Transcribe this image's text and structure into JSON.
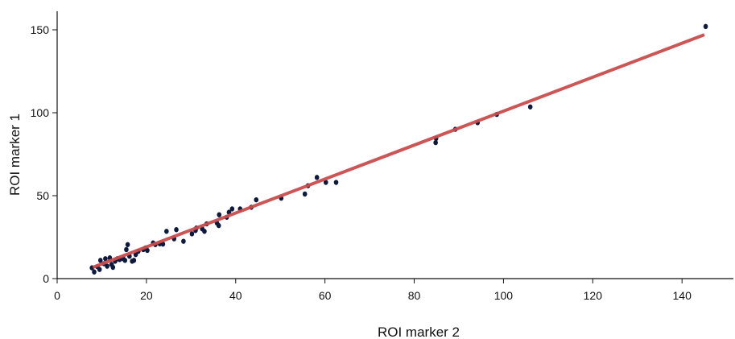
{
  "chart_data": {
    "type": "scatter",
    "xlabel": "ROI marker 2",
    "ylabel": "ROI marker 1",
    "xlim": [
      0,
      150
    ],
    "ylim": [
      0,
      155
    ],
    "xticks": [
      0,
      20,
      40,
      60,
      80,
      100,
      120,
      140
    ],
    "yticks": [
      0,
      50,
      100,
      150
    ],
    "grid": false,
    "colors": {
      "points": "#0d1a3d",
      "fit_line": "#c94c4c",
      "axes": "#111111"
    },
    "series": [
      {
        "values_xy": [
          [
            7.8,
            6.5
          ],
          [
            8.3,
            4.0
          ],
          [
            9.0,
            7.2
          ],
          [
            9.5,
            5.5
          ],
          [
            9.7,
            11.0
          ],
          [
            10.5,
            9.0
          ],
          [
            10.8,
            12.0
          ],
          [
            11.2,
            7.5
          ],
          [
            11.8,
            12.5
          ],
          [
            12.2,
            8.5
          ],
          [
            12.5,
            6.8
          ],
          [
            13.0,
            10.5
          ],
          [
            13.5,
            12.0
          ],
          [
            14.0,
            11.5
          ],
          [
            14.8,
            12.0
          ],
          [
            15.2,
            11.0
          ],
          [
            15.5,
            17.5
          ],
          [
            15.8,
            20.5
          ],
          [
            16.2,
            13.5
          ],
          [
            16.8,
            10.5
          ],
          [
            17.2,
            11.0
          ],
          [
            17.6,
            14.5
          ],
          [
            18.2,
            16.5
          ],
          [
            19.3,
            17.5
          ],
          [
            19.8,
            18.5
          ],
          [
            20.2,
            17.0
          ],
          [
            21.5,
            21.5
          ],
          [
            22.0,
            20.5
          ],
          [
            23.0,
            21.0
          ],
          [
            23.7,
            20.8
          ],
          [
            24.5,
            28.5
          ],
          [
            26.2,
            24.0
          ],
          [
            26.7,
            29.5
          ],
          [
            28.3,
            22.5
          ],
          [
            30.2,
            27.0
          ],
          [
            31.0,
            29.0
          ],
          [
            31.2,
            30.5
          ],
          [
            32.5,
            30.0
          ],
          [
            33.0,
            28.5
          ],
          [
            33.5,
            33.0
          ],
          [
            35.8,
            33.5
          ],
          [
            36.2,
            32.0
          ],
          [
            36.3,
            38.5
          ],
          [
            38.0,
            37.0
          ],
          [
            38.5,
            40.0
          ],
          [
            39.2,
            42.0
          ],
          [
            41.0,
            42.0
          ],
          [
            43.5,
            43.0
          ],
          [
            44.6,
            47.5
          ],
          [
            50.2,
            48.5
          ],
          [
            55.5,
            51.0
          ],
          [
            56.2,
            56.0
          ],
          [
            58.2,
            61.0
          ],
          [
            60.2,
            58.0
          ],
          [
            62.5,
            58.0
          ],
          [
            84.8,
            82.0
          ],
          [
            84.9,
            84.5
          ],
          [
            89.2,
            90.0
          ],
          [
            94.2,
            94.0
          ],
          [
            98.5,
            99.0
          ],
          [
            106.0,
            103.5
          ],
          [
            145.3,
            152.0
          ]
        ]
      }
    ],
    "fit_line": {
      "x": [
        8,
        145
      ],
      "y": [
        6.8,
        147
      ]
    }
  }
}
